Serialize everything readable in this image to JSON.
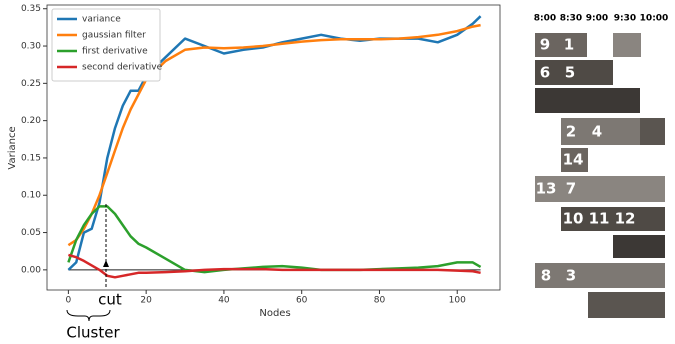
{
  "chart_data": {
    "type": "line",
    "x": [
      0,
      2,
      4,
      6,
      8,
      10,
      12,
      14,
      16,
      18,
      20,
      25,
      30,
      35,
      40,
      45,
      50,
      55,
      60,
      65,
      70,
      75,
      80,
      85,
      90,
      95,
      100,
      104,
      106
    ],
    "series": [
      {
        "name": "variance",
        "color": "#1f77b4",
        "values": [
          0,
          0.01,
          0.05,
          0.055,
          0.09,
          0.15,
          0.19,
          0.22,
          0.24,
          0.24,
          0.26,
          0.285,
          0.31,
          0.3,
          0.29,
          0.295,
          0.298,
          0.305,
          0.31,
          0.315,
          0.31,
          0.307,
          0.31,
          0.31,
          0.31,
          0.305,
          0.315,
          0.33,
          0.34
        ]
      },
      {
        "name": "gaussian filter",
        "color": "#ff7f0e",
        "values": [
          0.033,
          0.04,
          0.055,
          0.075,
          0.1,
          0.13,
          0.16,
          0.19,
          0.215,
          0.235,
          0.255,
          0.28,
          0.295,
          0.298,
          0.297,
          0.298,
          0.3,
          0.303,
          0.306,
          0.308,
          0.309,
          0.309,
          0.309,
          0.31,
          0.312,
          0.315,
          0.32,
          0.326,
          0.328
        ]
      },
      {
        "name": "first derivative",
        "color": "#2ca02c",
        "values": [
          0.01,
          0.04,
          0.06,
          0.075,
          0.085,
          0.085,
          0.075,
          0.06,
          0.045,
          0.035,
          0.03,
          0.015,
          0,
          -0.003,
          0,
          0.002,
          0.004,
          0.005,
          0.003,
          0,
          0,
          0,
          0.001,
          0.002,
          0.003,
          0.005,
          0.01,
          0.01,
          0.004
        ]
      },
      {
        "name": "second derivative",
        "color": "#d62728",
        "values": [
          0.02,
          0.017,
          0.012,
          0.006,
          0,
          -0.008,
          -0.01,
          -0.008,
          -0.006,
          -0.004,
          -0.004,
          -0.003,
          -0.002,
          0,
          0.001,
          0.001,
          0.001,
          0,
          0,
          0,
          0,
          0,
          0,
          0,
          0,
          0,
          -0.001,
          -0.002,
          -0.004
        ]
      }
    ],
    "x_label": "Nodes",
    "y_label": "Variance",
    "xlim": [
      -5.5,
      111
    ],
    "ylim": [
      -0.027,
      0.355
    ],
    "xticks": [
      0,
      20,
      40,
      60,
      80,
      100
    ],
    "yticks": [
      {
        "value": 0,
        "label": "0.00"
      },
      {
        "value": 0.05,
        "label": "0.05"
      },
      {
        "value": 0.1,
        "label": "0.10"
      },
      {
        "value": 0.15,
        "label": "0.15"
      },
      {
        "value": 0.2,
        "label": "0.20"
      },
      {
        "value": 0.25,
        "label": "0.25"
      },
      {
        "value": 0.3,
        "label": "0.30"
      },
      {
        "value": 0.35,
        "label": "0.35"
      }
    ],
    "reference_line": 0,
    "legend": "upper-left",
    "annotations": [
      "cut",
      "Cluster"
    ]
  },
  "photo_panel": {
    "times": [
      "8:00",
      "8:30",
      "9:00",
      "9:30",
      "10:00"
    ],
    "labels": [
      "9",
      "1",
      "6",
      "5",
      "2",
      "4",
      "14",
      "13",
      "7",
      "10",
      "11",
      "12",
      "8",
      "3"
    ]
  }
}
